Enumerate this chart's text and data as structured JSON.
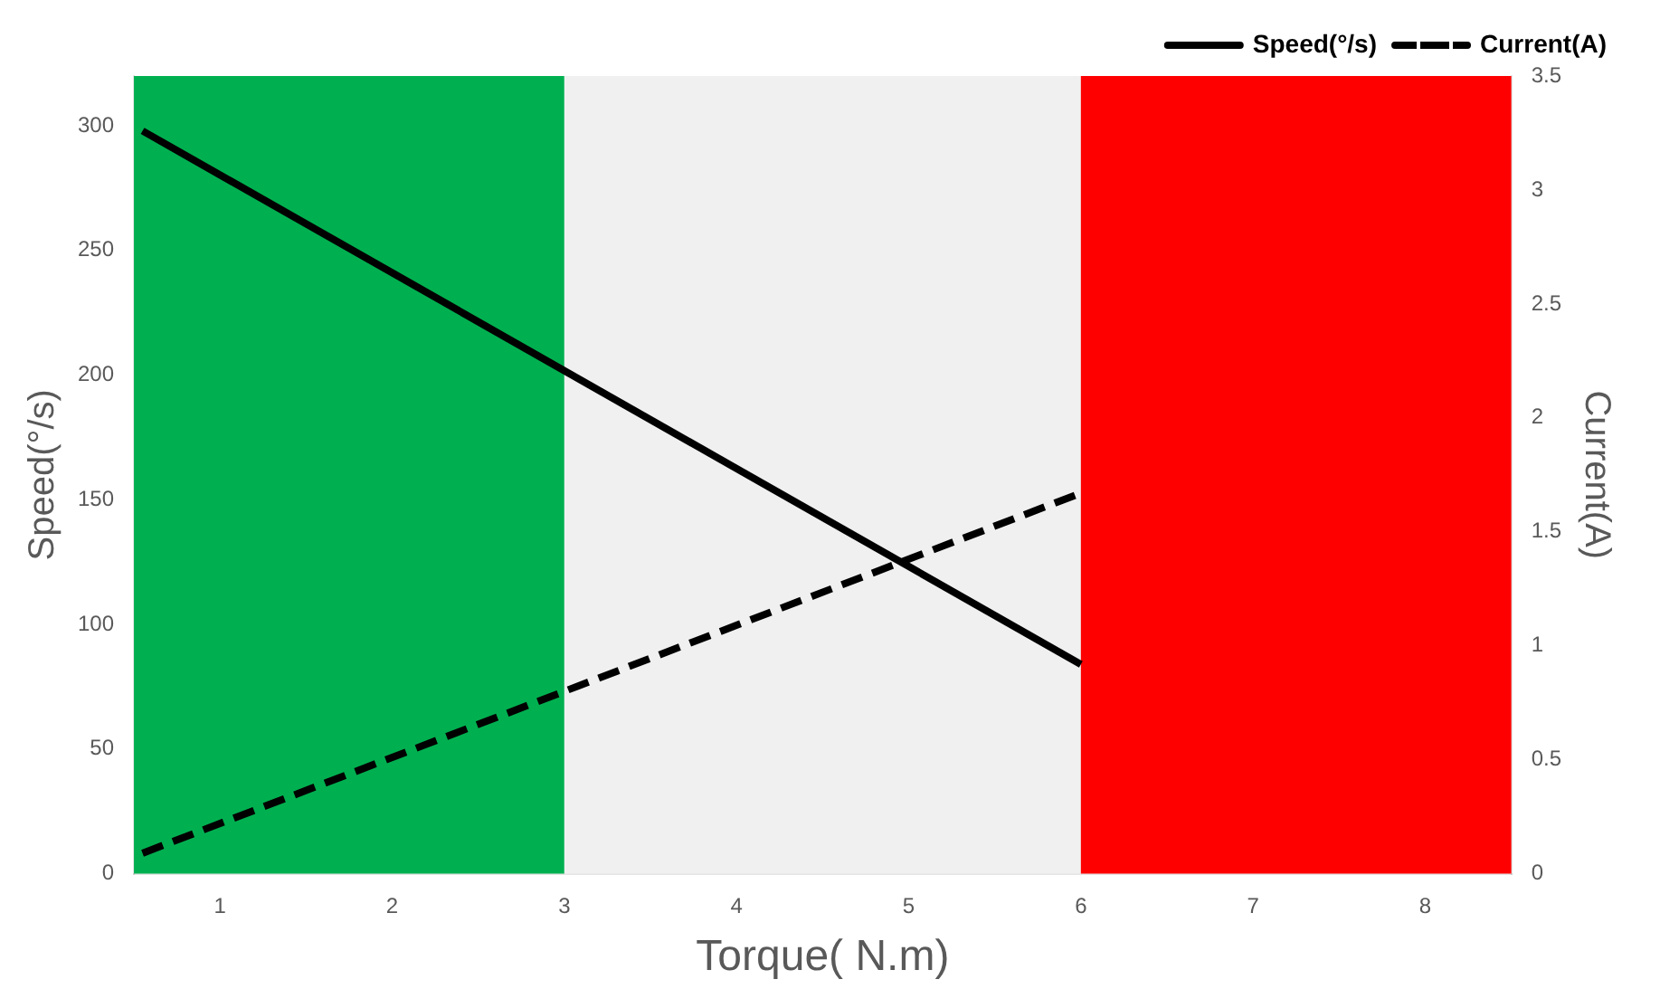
{
  "chart_data": {
    "type": "line",
    "xlabel": "Torque( N.m)",
    "ylabel": "Speed(°/s)",
    "y2label": "Current(A)",
    "xlim": [
      0.5,
      8.5
    ],
    "xticks": [
      1,
      2,
      3,
      4,
      5,
      6,
      7,
      8
    ],
    "ylim": [
      0,
      320
    ],
    "yticks": [
      0,
      50,
      100,
      150,
      200,
      250,
      300
    ],
    "y2lim": [
      0,
      3.5
    ],
    "y2ticks": [
      0,
      0.5,
      1,
      1.5,
      2,
      2.5,
      3,
      3.5
    ],
    "x": [
      0.55,
      6
    ],
    "series": [
      {
        "name": "Speed(°/s)",
        "color": "#000000",
        "values": [
          298,
          84
        ],
        "line_style": "solid"
      },
      {
        "name": "Current(A)",
        "color": "#000000",
        "values": [
          0.09,
          1.67
        ],
        "line_style": "dashed",
        "axis": "y2"
      }
    ],
    "bands": [
      {
        "axis": "x",
        "from": 0.5,
        "to": 3,
        "color": "#00b050"
      },
      {
        "axis": "x",
        "from": 3,
        "to": 6,
        "color": "#f0f0f0"
      },
      {
        "axis": "x",
        "from": 6,
        "to": 8.5,
        "color": "#ff0000"
      }
    ],
    "legend": "top right",
    "grid": false,
    "marker": "none"
  }
}
